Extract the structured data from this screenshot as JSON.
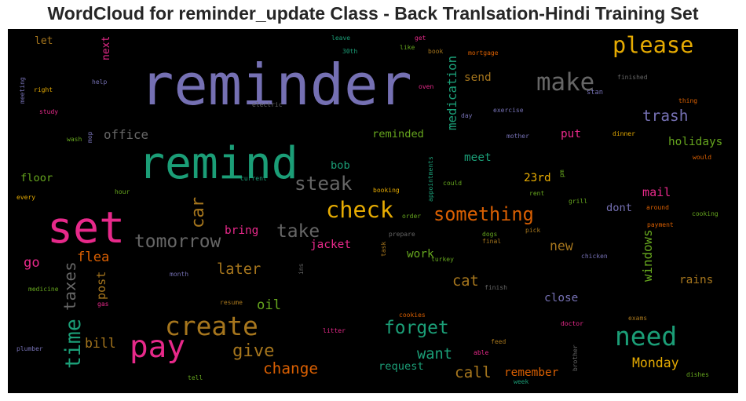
{
  "chart_data": {
    "type": "wordcloud",
    "title": "WordCloud for reminder_update Class - Back Tranlsation-Hindi Training Set",
    "background": "#000000",
    "palette": [
      "#7570b3",
      "#1b9e77",
      "#e7298a",
      "#e6ab02",
      "#d95f02",
      "#666666",
      "#a6761d",
      "#66a61e"
    ],
    "words": [
      {
        "text": "reminder",
        "weight": 100,
        "color": "#7570b3"
      },
      {
        "text": "remind",
        "weight": 78,
        "color": "#1b9e77"
      },
      {
        "text": "set",
        "weight": 76,
        "color": "#e7298a"
      },
      {
        "text": "pay",
        "weight": 54,
        "color": "#e7298a"
      },
      {
        "text": "create",
        "weight": 45,
        "color": "#a6761d"
      },
      {
        "text": "need",
        "weight": 45,
        "color": "#1b9e77"
      },
      {
        "text": "make",
        "weight": 42,
        "color": "#666666"
      },
      {
        "text": "please",
        "weight": 39,
        "color": "#e6ab02"
      },
      {
        "text": "check",
        "weight": 39,
        "color": "#e6ab02"
      },
      {
        "text": "time",
        "weight": 36,
        "color": "#1b9e77"
      },
      {
        "text": "steak",
        "weight": 33,
        "color": "#666666"
      },
      {
        "text": "something",
        "weight": 32,
        "color": "#d95f02"
      },
      {
        "text": "tomorrow",
        "weight": 31,
        "color": "#666666"
      },
      {
        "text": "take",
        "weight": 31,
        "color": "#666666"
      },
      {
        "text": "forget",
        "weight": 31,
        "color": "#1b9e77"
      },
      {
        "text": "car",
        "weight": 30,
        "color": "#a6761d"
      },
      {
        "text": "give",
        "weight": 30,
        "color": "#a6761d"
      },
      {
        "text": "taxes",
        "weight": 28,
        "color": "#666666"
      },
      {
        "text": "trash",
        "weight": 26,
        "color": "#7570b3"
      },
      {
        "text": "change",
        "weight": 26,
        "color": "#d95f02"
      },
      {
        "text": "call",
        "weight": 26,
        "color": "#a6761d"
      },
      {
        "text": "later",
        "weight": 25,
        "color": "#a6761d"
      },
      {
        "text": "want",
        "weight": 25,
        "color": "#1b9e77"
      },
      {
        "text": "cat",
        "weight": 25,
        "color": "#a6761d"
      },
      {
        "text": "flea",
        "weight": 23,
        "color": "#d95f02"
      },
      {
        "text": "go",
        "weight": 23,
        "color": "#e7298a"
      },
      {
        "text": "medication",
        "weight": 21,
        "color": "#1b9e77"
      },
      {
        "text": "oil",
        "weight": 23,
        "color": "#66a61e"
      },
      {
        "text": "bill",
        "weight": 22,
        "color": "#a6761d"
      },
      {
        "text": "new",
        "weight": 22,
        "color": "#a6761d"
      },
      {
        "text": "Monday",
        "weight": 22,
        "color": "#e6ab02"
      },
      {
        "text": "windows",
        "weight": 21,
        "color": "#66a61e"
      },
      {
        "text": "office",
        "weight": 21,
        "color": "#666666"
      },
      {
        "text": "post",
        "weight": 20,
        "color": "#a6761d"
      },
      {
        "text": "mail",
        "weight": 20,
        "color": "#e7298a"
      },
      {
        "text": "send",
        "weight": 19,
        "color": "#a6761d"
      },
      {
        "text": "meet",
        "weight": 19,
        "color": "#1b9e77"
      },
      {
        "text": "jacket",
        "weight": 19,
        "color": "#e7298a"
      },
      {
        "text": "put",
        "weight": 19,
        "color": "#e7298a"
      },
      {
        "text": "bring",
        "weight": 19,
        "color": "#e7298a"
      },
      {
        "text": "rains",
        "weight": 19,
        "color": "#a6761d"
      },
      {
        "text": "close",
        "weight": 19,
        "color": "#7570b3"
      },
      {
        "text": "work",
        "weight": 19,
        "color": "#66a61e"
      },
      {
        "text": "remember",
        "weight": 19,
        "color": "#d95f02"
      },
      {
        "text": "holidays",
        "weight": 19,
        "color": "#66a61e"
      },
      {
        "text": "23rd",
        "weight": 19,
        "color": "#e6ab02"
      },
      {
        "text": "reminded",
        "weight": 18,
        "color": "#66a61e"
      },
      {
        "text": "request",
        "weight": 18,
        "color": "#1b9e77"
      },
      {
        "text": "floor",
        "weight": 18,
        "color": "#66a61e"
      },
      {
        "text": "dont",
        "weight": 18,
        "color": "#7570b3"
      },
      {
        "text": "bob",
        "weight": 18,
        "color": "#1b9e77"
      },
      {
        "text": "next",
        "weight": 17,
        "color": "#e7298a"
      },
      {
        "text": "let",
        "weight": 17,
        "color": "#a6761d"
      },
      {
        "text": "stan",
        "weight": 11,
        "color": "#7570b3"
      },
      {
        "text": "finished",
        "weight": 10,
        "color": "#666666"
      },
      {
        "text": "thing",
        "weight": 10,
        "color": "#d95f02"
      },
      {
        "text": "exercise",
        "weight": 10,
        "color": "#7570b3"
      },
      {
        "text": "day",
        "weight": 10,
        "color": "#7570b3"
      },
      {
        "text": "mother",
        "weight": 10,
        "color": "#7570b3"
      },
      {
        "text": "dinner",
        "weight": 10,
        "color": "#e6ab02"
      },
      {
        "text": "would",
        "weight": 10,
        "color": "#d95f02"
      },
      {
        "text": "cooking",
        "weight": 10,
        "color": "#66a61e"
      },
      {
        "text": "payment",
        "weight": 10,
        "color": "#d95f02"
      },
      {
        "text": "around",
        "weight": 10,
        "color": "#d95f02"
      },
      {
        "text": "chicken",
        "weight": 10,
        "color": "#7570b3"
      },
      {
        "text": "exams",
        "weight": 10,
        "color": "#a6761d"
      },
      {
        "text": "doctor",
        "weight": 10,
        "color": "#e7298a"
      },
      {
        "text": "dishes",
        "weight": 10,
        "color": "#66a61e"
      },
      {
        "text": "brother",
        "weight": 10,
        "color": "#666666"
      },
      {
        "text": "week",
        "weight": 10,
        "color": "#1b9e77"
      },
      {
        "text": "grill",
        "weight": 10,
        "color": "#66a61e"
      },
      {
        "text": "rent",
        "weight": 10,
        "color": "#66a61e"
      },
      {
        "text": "pm",
        "weight": 10,
        "color": "#66a61e"
      },
      {
        "text": "pick",
        "weight": 10,
        "color": "#a6761d"
      },
      {
        "text": "dogs",
        "weight": 10,
        "color": "#66a61e"
      },
      {
        "text": "final",
        "weight": 10,
        "color": "#a6761d"
      },
      {
        "text": "finish",
        "weight": 10,
        "color": "#666666"
      },
      {
        "text": "feed",
        "weight": 10,
        "color": "#a6761d"
      },
      {
        "text": "able",
        "weight": 10,
        "color": "#e7298a"
      },
      {
        "text": "turkey",
        "weight": 10,
        "color": "#66a61e"
      },
      {
        "text": "could",
        "weight": 10,
        "color": "#66a61e"
      },
      {
        "text": "appointments",
        "weight": 10,
        "color": "#1b9e77"
      },
      {
        "text": "order",
        "weight": 10,
        "color": "#66a61e"
      },
      {
        "text": "prepare",
        "weight": 10,
        "color": "#666666"
      },
      {
        "text": "task",
        "weight": 10,
        "color": "#a6761d"
      },
      {
        "text": "booking",
        "weight": 10,
        "color": "#e6ab02"
      },
      {
        "text": "cookies",
        "weight": 10,
        "color": "#d95f02"
      },
      {
        "text": "litter",
        "weight": 10,
        "color": "#e7298a"
      },
      {
        "text": "resume",
        "weight": 10,
        "color": "#a6761d"
      },
      {
        "text": "ins",
        "weight": 10,
        "color": "#666666"
      },
      {
        "text": "month",
        "weight": 10,
        "color": "#7570b3"
      },
      {
        "text": "medicine",
        "weight": 10,
        "color": "#66a61e"
      },
      {
        "text": "gas",
        "weight": 10,
        "color": "#e7298a"
      },
      {
        "text": "plumber",
        "weight": 10,
        "color": "#7570b3"
      },
      {
        "text": "tell",
        "weight": 10,
        "color": "#66a61e"
      },
      {
        "text": "every",
        "weight": 10,
        "color": "#e6ab02"
      },
      {
        "text": "hour",
        "weight": 10,
        "color": "#66a61e"
      },
      {
        "text": "current",
        "weight": 10,
        "color": "#1b9e77"
      },
      {
        "text": "electric",
        "weight": 10,
        "color": "#666666"
      },
      {
        "text": "wash",
        "weight": 10,
        "color": "#66a61e"
      },
      {
        "text": "mop",
        "weight": 10,
        "color": "#7570b3"
      },
      {
        "text": "study",
        "weight": 10,
        "color": "#e7298a"
      },
      {
        "text": "meeting",
        "weight": 10,
        "color": "#7570b3"
      },
      {
        "text": "right",
        "weight": 10,
        "color": "#e6ab02"
      },
      {
        "text": "help",
        "weight": 10,
        "color": "#7570b3"
      },
      {
        "text": "leave",
        "weight": 10,
        "color": "#1b9e77"
      },
      {
        "text": "30th",
        "weight": 10,
        "color": "#1b9e77"
      },
      {
        "text": "get",
        "weight": 10,
        "color": "#e7298a"
      },
      {
        "text": "like",
        "weight": 10,
        "color": "#66a61e"
      },
      {
        "text": "book",
        "weight": 10,
        "color": "#a6761d"
      },
      {
        "text": "mortgage",
        "weight": 10,
        "color": "#d95f02"
      },
      {
        "text": "oven",
        "weight": 10,
        "color": "#e7298a"
      }
    ]
  }
}
